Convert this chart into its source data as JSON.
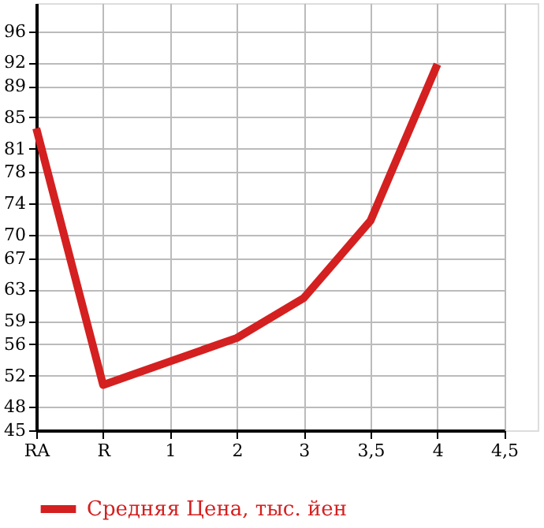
{
  "chart_data": {
    "type": "line",
    "categories": [
      "RA",
      "R",
      "1",
      "2",
      "3",
      "3,5",
      "4",
      "4,5"
    ],
    "series": [
      {
        "name": "Средняя Цена, тыс. йен",
        "color": "#d42020",
        "values": [
          83.6,
          50.8,
          53.8,
          56.8,
          61.9,
          71.8,
          91.8,
          null
        ]
      }
    ],
    "ylim": [
      45,
      99.6
    ],
    "yticks": [
      45,
      48,
      52,
      56,
      59,
      63,
      67,
      70,
      74,
      78,
      81,
      85,
      89,
      92,
      96
    ],
    "grid": true,
    "legend": "bottom",
    "marker": "none",
    "line_style": "solid"
  }
}
